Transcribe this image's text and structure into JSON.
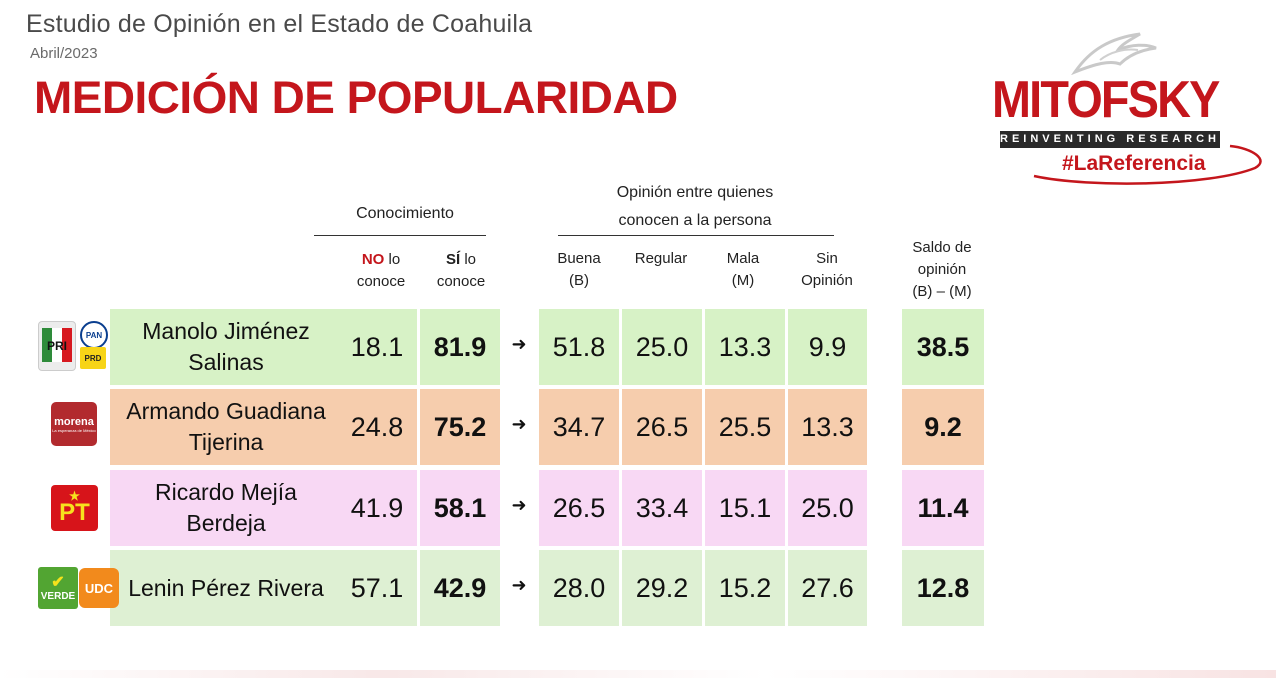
{
  "header": {
    "study_title": "Estudio de Opinión en el Estado de Coahuila",
    "date": "Abril/2023",
    "main_title": "MEDICIÓN DE POPULARIDAD"
  },
  "logo": {
    "word": "MITOFSKY",
    "tagline": "REINVENTING RESEARCH",
    "hashtag": "#LaReferencia"
  },
  "columns": {
    "conocimiento": "Conocimiento",
    "opinion_line1": "Opinión entre quienes",
    "opinion_line2": "conocen a la persona",
    "no_strong": "NO",
    "no_rest1": " lo",
    "no_rest2": "conoce",
    "si_strong": "SÍ",
    "si_rest1": " lo",
    "si_rest2": "conoce",
    "buena_1": "Buena",
    "buena_2": "(B)",
    "regular": "Regular",
    "mala_1": "Mala",
    "mala_2": "(M)",
    "sin_1": "Sin",
    "sin_2": "Opinión",
    "saldo_1": "Saldo de",
    "saldo_2": "opinión",
    "saldo_3": "(B) – (M)"
  },
  "rows": [
    {
      "name_1": "Manolo Jiménez",
      "name_2": "Salinas",
      "no": "18.1",
      "si": "81.9",
      "buena": "51.8",
      "regular": "25.0",
      "mala": "13.3",
      "sin": "9.9",
      "saldo": "38.5",
      "arrow": "➜"
    },
    {
      "name_1": "Armando Guadiana",
      "name_2": "Tijerina",
      "no": "24.8",
      "si": "75.2",
      "buena": "34.7",
      "regular": "26.5",
      "mala": "25.5",
      "sin": "13.3",
      "saldo": "9.2",
      "arrow": "➜"
    },
    {
      "name_1": "Ricardo Mejía Berdeja",
      "name_2": "",
      "no": "41.9",
      "si": "58.1",
      "buena": "26.5",
      "regular": "33.4",
      "mala": "15.1",
      "sin": "25.0",
      "saldo": "11.4",
      "arrow": "➜"
    },
    {
      "name_1": "Lenin Pérez Rivera",
      "name_2": "",
      "no": "57.1",
      "si": "42.9",
      "buena": "28.0",
      "regular": "29.2",
      "mala": "15.2",
      "sin": "27.6",
      "saldo": "12.8",
      "arrow": "➜"
    }
  ],
  "parties": {
    "pri": "PRI",
    "pan": "PAN",
    "prd": "PRD",
    "morena": "morena",
    "morena_sub": "La esperanza de México",
    "pt": "PT",
    "verde": "VERDE",
    "udc": "UDC"
  },
  "colors": {
    "title_red": "#c4161c",
    "row_0": "#d7f2c6",
    "row_1": "#f6cdad",
    "row_2": "#f8d8f4",
    "row_3": "#def0d3"
  }
}
